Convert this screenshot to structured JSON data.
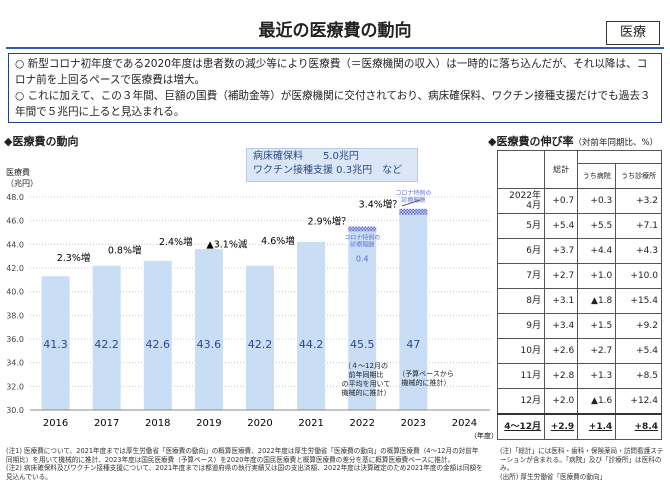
{
  "header": {
    "title": "最近の医療費の動向",
    "tag": "医療"
  },
  "summary": [
    "○ 新型コロナ初年度である2020年度は患者数の減少等により医療費（＝医療機関の収入）は一時的に落ち込んだが、それ以降は、コロナ前を上回るペースで医療費は増大。",
    "○ これに加えて、この３年間、巨額の国費（補助金等）が医療機関に交付されており、病床確保料、ワクチン接種支援だけでも過去３年間で５兆円に上ると見込まれる。"
  ],
  "chart_data": {
    "type": "bar",
    "section_title": "◆医療費の動向",
    "y_label": "医療費\n（兆円）",
    "x_label": "（年度）",
    "categories": [
      "2016",
      "2017",
      "2018",
      "2019",
      "2020",
      "2021",
      "2022",
      "2023",
      "2024"
    ],
    "values": [
      41.3,
      42.2,
      42.6,
      43.6,
      42.2,
      44.2,
      45.5,
      47.0,
      null
    ],
    "color": "#c9ddf5",
    "covid_values": [
      null,
      null,
      null,
      null,
      null,
      null,
      0.4,
      0.5,
      null
    ],
    "covid_color": "#5f6fd6",
    "covid_label": "コロナ特例の\n診療報酬",
    "covid_value_labels": [
      null,
      null,
      null,
      null,
      null,
      null,
      "0.4",
      null,
      null
    ],
    "growth_labels": [
      "2.3%増",
      "0.8%増",
      "2.4%増",
      "▲3.1%減",
      "4.6%増",
      "2.9%増？",
      "3.4%増？",
      null,
      null
    ],
    "annotation_box": [
      "病床確保料　　5.0兆円",
      "ワクチン接種支援 0.3兆円　など"
    ],
    "notes": [
      "（４～12月の\n前年同期比\nの平均を用いて\n機械的に推計）",
      "（予算ベースから\n機械的に推計）"
    ],
    "ylim": [
      30,
      48
    ],
    "yticks": [
      {
        "value": 30,
        "label": "30.0"
      },
      {
        "value": 32,
        "label": "32.0"
      },
      {
        "value": 34,
        "label": "34.0"
      },
      {
        "value": 36,
        "label": "36.0"
      },
      {
        "value": 38,
        "label": "38.0"
      },
      {
        "value": 40,
        "label": "40.0"
      },
      {
        "value": 42,
        "label": "42.0"
      },
      {
        "value": 44,
        "label": "44.0"
      },
      {
        "value": 46,
        "label": "46.0"
      },
      {
        "value": 48,
        "label": "48.0"
      }
    ],
    "grid": true
  },
  "table": {
    "title": "◆医療費の伸び率",
    "subtitle": "（対前年同期比、%）",
    "columns": [
      "総計",
      "うち病院",
      "うち診療所"
    ],
    "rows": [
      [
        "2022年\n4月",
        "+0.7",
        "+0.3",
        "+3.2"
      ],
      [
        "5月",
        "+5.4",
        "+5.5",
        "+7.1"
      ],
      [
        "6月",
        "+3.7",
        "+4.4",
        "+4.3"
      ],
      [
        "7月",
        "+2.7",
        "+1.0",
        "+10.0"
      ],
      [
        "8月",
        "+3.1",
        "▲1.8",
        "+15.4"
      ],
      [
        "9月",
        "+3.4",
        "+1.5",
        "+9.2"
      ],
      [
        "10月",
        "+2.6",
        "+2.7",
        "+5.4"
      ],
      [
        "11月",
        "+2.8",
        "+1.3",
        "+8.5"
      ],
      [
        "12月",
        "+2.0",
        "▲1.6",
        "+12.4"
      ]
    ],
    "total": [
      "4～12月",
      "+2.9",
      "+1.4",
      "+8.4"
    ]
  },
  "footnotes_left": [
    "(注1) 医療費について、2021年度までは厚生労働省「医療費の動向」の概算医療費、2022年度は厚生労働省「医療費の動向」の概算医療費（4～12月の対前年同期比）を用いて機械的に推計、2023年度は国民医療費（予算ベース）を2020年度の国民医療費と概算医療費の差分を基に概算医療費ベースに推計。",
    "(注2) 病床確保料及びワクチン接種支援について、2021年度までは都道府県の執行実績又は国の支出済額、2022年度は決算確定のため2021年度の金額は同額を見込んでいる。"
  ],
  "footnotes_right": [
    "(注)「総計」には医科・歯科・保険薬局・訪問看護ステーションが含まれる。「病院」及び「診療所」は医科のみ。",
    "(出所) 厚生労働省「医療費の動向」"
  ]
}
